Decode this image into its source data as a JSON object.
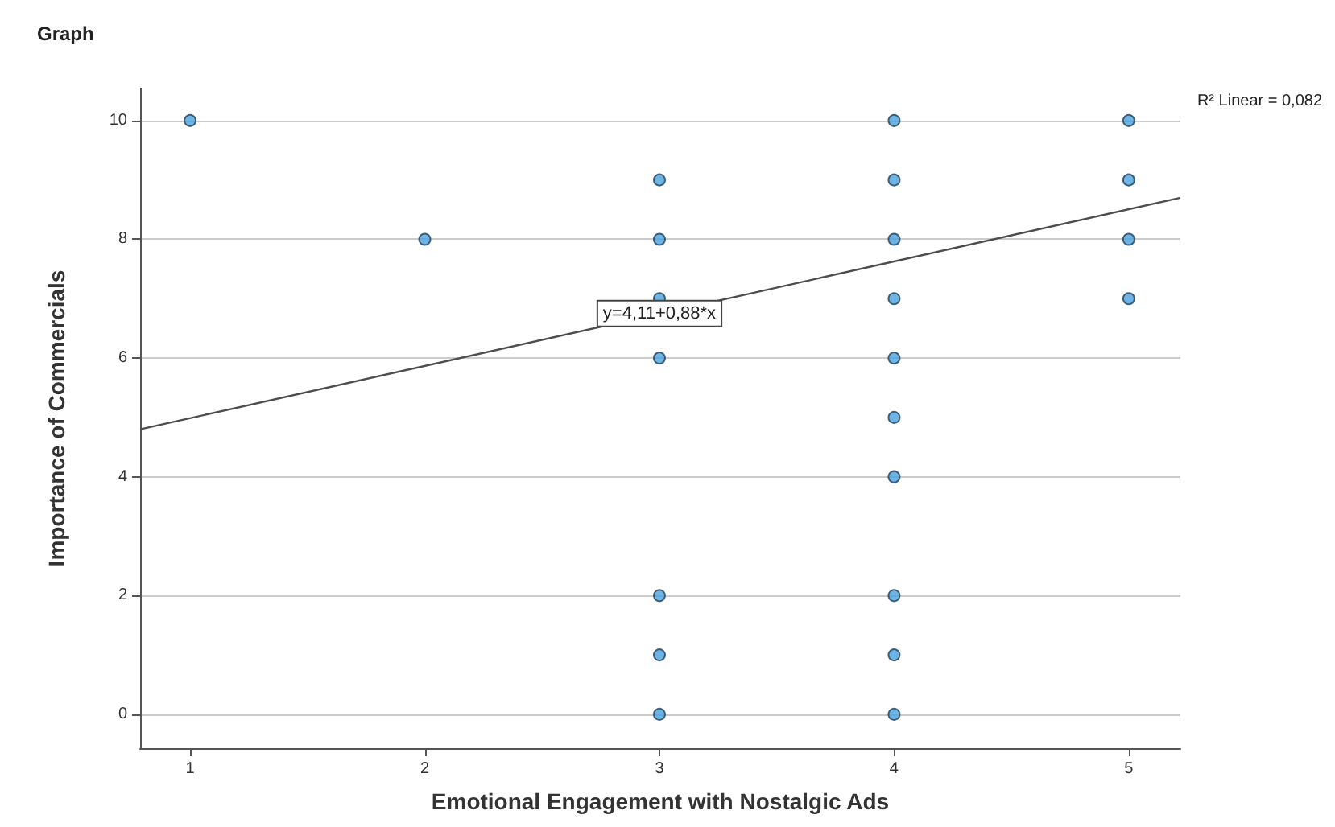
{
  "chart_data": {
    "type": "scatter",
    "title": "Graph",
    "xlabel": "Emotional Engagement with Nostalgic Ads",
    "ylabel": "Importance of Commercials",
    "annotations": [
      {
        "text": "y=4,11+0,88*x",
        "x": 3,
        "y": 6.75
      },
      "R² Linear = 0,082"
    ],
    "series": [
      {
        "marker": "circle",
        "color": "#4aa3df",
        "x": [
          1,
          2,
          3,
          3,
          3,
          3,
          3,
          3,
          3,
          4,
          4,
          4,
          4,
          4,
          4,
          4,
          4,
          4,
          4,
          5,
          5,
          5,
          5
        ],
        "values": [
          10,
          8,
          9,
          8,
          7,
          6,
          2,
          1,
          0,
          10,
          9,
          8,
          7,
          6,
          5,
          4,
          2,
          1,
          0,
          10,
          9,
          8,
          7
        ]
      },
      {
        "type": "line",
        "marker": "none",
        "color": "#4d4d4d",
        "x": [
          0.787,
          5.22
        ],
        "values": [
          4.8,
          8.7
        ]
      }
    ],
    "xlim": [
      0.787,
      5.22
    ],
    "xticks": [
      1,
      2,
      3,
      4,
      5
    ],
    "ylim": [
      -0.57,
      10.54
    ],
    "yticks": [
      0,
      2,
      4,
      6,
      8,
      10
    ],
    "grid": "y"
  }
}
